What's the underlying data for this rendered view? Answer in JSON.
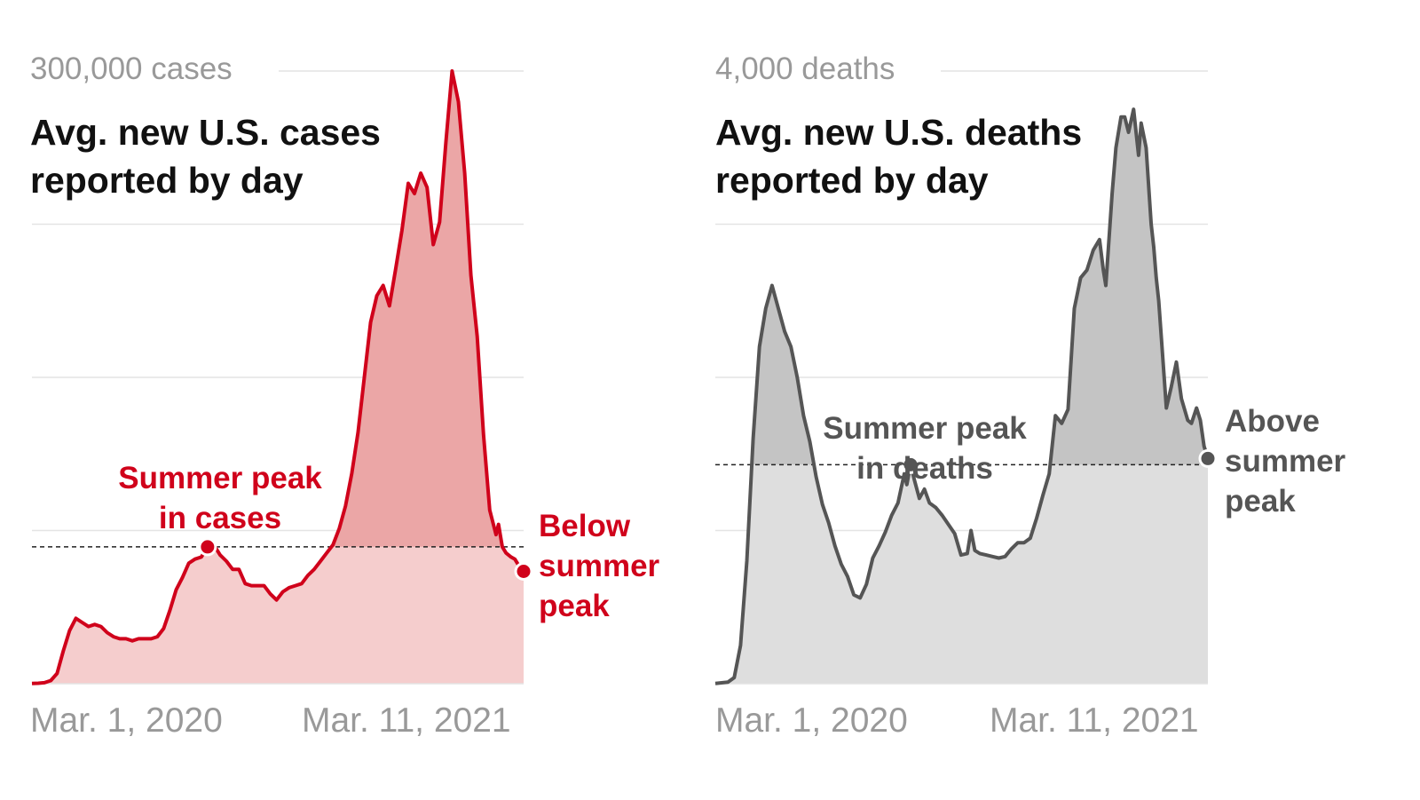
{
  "colors": {
    "cases_line": "#d0021b",
    "cases_fill_above": "#eba6a6",
    "cases_fill_below": "#f5cdcd",
    "deaths_line": "#555555",
    "deaths_fill_above": "#c4c4c4",
    "deaths_fill_below": "#dedede",
    "gridline": "#e4e4e4",
    "axis_text": "#999999"
  },
  "chart_data": [
    {
      "type": "area",
      "title_lines": [
        "Avg. new U.S. cases",
        "reported by day"
      ],
      "y_top_label": "300,000 cases",
      "ylim": [
        0,
        300000
      ],
      "x_tick_labels": [
        "Mar. 1, 2020",
        "Mar. 11, 2021"
      ],
      "xlim": [
        0,
        375
      ],
      "grid": true,
      "reference": {
        "value": 67000,
        "annotation_lines": [
          "Summer peak",
          "in cases"
        ],
        "x": 140
      },
      "end_annotation_lines": [
        "Below",
        "summer",
        "peak"
      ],
      "series": [
        {
          "points": [
            [
              0,
              100
            ],
            [
              5,
              200
            ],
            [
              10,
              500
            ],
            [
              15,
              1500
            ],
            [
              20,
              5000
            ],
            [
              25,
              16000
            ],
            [
              30,
              26000
            ],
            [
              35,
              32000
            ],
            [
              40,
              30000
            ],
            [
              45,
              28000
            ],
            [
              50,
              29000
            ],
            [
              55,
              28000
            ],
            [
              60,
              25000
            ],
            [
              65,
              23000
            ],
            [
              70,
              22000
            ],
            [
              75,
              22000
            ],
            [
              80,
              21000
            ],
            [
              85,
              22000
            ],
            [
              90,
              22000
            ],
            [
              95,
              22000
            ],
            [
              100,
              23000
            ],
            [
              105,
              27000
            ],
            [
              110,
              36000
            ],
            [
              115,
              46000
            ],
            [
              120,
              52000
            ],
            [
              125,
              59000
            ],
            [
              130,
              61000
            ],
            [
              135,
              62000
            ],
            [
              140,
              67000
            ],
            [
              145,
              68000
            ],
            [
              150,
              63000
            ],
            [
              155,
              60000
            ],
            [
              160,
              56000
            ],
            [
              165,
              56000
            ],
            [
              170,
              49000
            ],
            [
              175,
              48000
            ],
            [
              180,
              48000
            ],
            [
              185,
              48000
            ],
            [
              190,
              44000
            ],
            [
              195,
              41000
            ],
            [
              200,
              45000
            ],
            [
              205,
              47000
            ],
            [
              210,
              48000
            ],
            [
              215,
              49000
            ],
            [
              220,
              53000
            ],
            [
              225,
              56000
            ],
            [
              230,
              60000
            ],
            [
              235,
              64000
            ],
            [
              240,
              68000
            ],
            [
              245,
              76000
            ],
            [
              250,
              87000
            ],
            [
              255,
              103000
            ],
            [
              260,
              123000
            ],
            [
              265,
              150000
            ],
            [
              270,
              177000
            ],
            [
              275,
              190000
            ],
            [
              280,
              195000
            ],
            [
              285,
              185000
            ],
            [
              290,
              203000
            ],
            [
              295,
              222000
            ],
            [
              300,
              245000
            ],
            [
              305,
              240000
            ],
            [
              310,
              250000
            ],
            [
              315,
              243000
            ],
            [
              320,
              215000
            ],
            [
              325,
              226000
            ],
            [
              330,
              265000
            ],
            [
              335,
              300000
            ],
            [
              340,
              285000
            ],
            [
              345,
              250000
            ],
            [
              350,
              200000
            ],
            [
              355,
              170000
            ],
            [
              360,
              122000
            ],
            [
              365,
              85000
            ],
            [
              370,
              73000
            ],
            [
              372,
              78000
            ],
            [
              375,
              67000
            ],
            [
              378,
              64000
            ],
            [
              382,
              62000
            ],
            [
              385,
              61000
            ],
            [
              388,
              58000
            ],
            [
              392,
              55000
            ]
          ]
        }
      ]
    },
    {
      "type": "area",
      "title_lines": [
        "Avg. new U.S. deaths",
        "reported by day"
      ],
      "y_top_label": "4,000 deaths",
      "ylim": [
        0,
        4000
      ],
      "x_tick_labels": [
        "Mar. 1, 2020",
        "Mar. 11, 2021"
      ],
      "xlim": [
        0,
        375
      ],
      "grid": true,
      "reference": {
        "value": 1430,
        "annotation_lines": [
          "Summer peak",
          "in deaths"
        ],
        "x": 155
      },
      "end_annotation_lines": [
        "Above",
        "summer",
        "peak"
      ],
      "series": [
        {
          "points": [
            [
              0,
              1
            ],
            [
              10,
              10
            ],
            [
              15,
              40
            ],
            [
              20,
              250
            ],
            [
              25,
              800
            ],
            [
              30,
              1600
            ],
            [
              35,
              2200
            ],
            [
              40,
              2450
            ],
            [
              45,
              2600
            ],
            [
              50,
              2450
            ],
            [
              55,
              2300
            ],
            [
              60,
              2200
            ],
            [
              65,
              2000
            ],
            [
              70,
              1750
            ],
            [
              75,
              1580
            ],
            [
              80,
              1350
            ],
            [
              85,
              1170
            ],
            [
              90,
              1050
            ],
            [
              95,
              900
            ],
            [
              100,
              780
            ],
            [
              105,
              700
            ],
            [
              110,
              580
            ],
            [
              115,
              560
            ],
            [
              120,
              650
            ],
            [
              125,
              820
            ],
            [
              130,
              900
            ],
            [
              135,
              990
            ],
            [
              140,
              1100
            ],
            [
              145,
              1180
            ],
            [
              150,
              1370
            ],
            [
              152,
              1300
            ],
            [
              155,
              1430
            ],
            [
              158,
              1330
            ],
            [
              162,
              1210
            ],
            [
              166,
              1270
            ],
            [
              170,
              1180
            ],
            [
              175,
              1150
            ],
            [
              180,
              1100
            ],
            [
              185,
              1040
            ],
            [
              190,
              980
            ],
            [
              195,
              840
            ],
            [
              200,
              850
            ],
            [
              203,
              1000
            ],
            [
              206,
              870
            ],
            [
              210,
              850
            ],
            [
              215,
              840
            ],
            [
              220,
              830
            ],
            [
              225,
              820
            ],
            [
              230,
              830
            ],
            [
              235,
              880
            ],
            [
              240,
              920
            ],
            [
              245,
              920
            ],
            [
              250,
              950
            ],
            [
              255,
              1080
            ],
            [
              260,
              1230
            ],
            [
              265,
              1370
            ],
            [
              270,
              1750
            ],
            [
              275,
              1700
            ],
            [
              280,
              1790
            ],
            [
              285,
              2450
            ],
            [
              290,
              2650
            ],
            [
              295,
              2700
            ],
            [
              300,
              2830
            ],
            [
              305,
              2900
            ],
            [
              308,
              2700
            ],
            [
              310,
              2600
            ],
            [
              315,
              3200
            ],
            [
              318,
              3500
            ],
            [
              322,
              3700
            ],
            [
              325,
              3700
            ],
            [
              328,
              3600
            ],
            [
              332,
              3750
            ],
            [
              336,
              3450
            ],
            [
              338,
              3660
            ],
            [
              342,
              3500
            ],
            [
              346,
              3000
            ],
            [
              348,
              2850
            ],
            [
              350,
              2650
            ],
            [
              352,
              2500
            ],
            [
              355,
              2150
            ],
            [
              358,
              1800
            ],
            [
              362,
              1940
            ],
            [
              366,
              2100
            ],
            [
              370,
              1860
            ],
            [
              375,
              1720
            ],
            [
              378,
              1700
            ],
            [
              382,
              1800
            ],
            [
              385,
              1720
            ],
            [
              388,
              1550
            ],
            [
              391,
              1470
            ]
          ]
        }
      ]
    }
  ]
}
